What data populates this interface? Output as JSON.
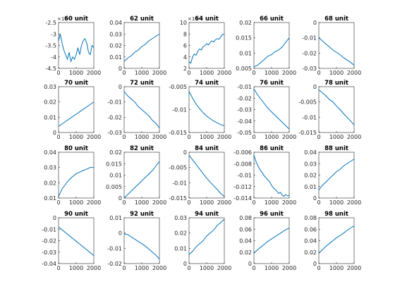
{
  "chart_data": [
    {
      "type": "line",
      "title": "60 unit",
      "y_exponent": "×10⁻³",
      "color": "#0072bd",
      "xlim": [
        0,
        2000
      ],
      "xticks": [
        0,
        1000,
        2000
      ],
      "ylim": [
        -4.5,
        -2.5
      ],
      "yticks": [
        -4.5,
        -4,
        -3.5,
        -3,
        -2.5
      ],
      "x": [
        0,
        100,
        200,
        300,
        400,
        500,
        600,
        700,
        800,
        900,
        1000,
        1100,
        1200,
        1300,
        1400,
        1500,
        1600,
        1700,
        1800,
        1900,
        2000
      ],
      "values": [
        -3.3,
        -3.0,
        -3.4,
        -3.7,
        -3.9,
        -4.1,
        -3.8,
        -4.2,
        -4.0,
        -4.1,
        -3.9,
        -3.6,
        -3.9,
        -3.5,
        -3.3,
        -3.2,
        -3.4,
        -3.8,
        -3.9,
        -3.5,
        -3.6
      ]
    },
    {
      "type": "line",
      "title": "62 unit",
      "color": "#0072bd",
      "xlim": [
        0,
        2000
      ],
      "xticks": [
        0,
        1000,
        2000
      ],
      "ylim": [
        0,
        0.04
      ],
      "yticks": [
        0,
        0.01,
        0.02,
        0.03,
        0.04
      ],
      "x": [
        0,
        200,
        400,
        600,
        800,
        1000,
        1200,
        1400,
        1600,
        1800,
        2000
      ],
      "values": [
        0.006,
        0.009,
        0.011,
        0.014,
        0.016,
        0.019,
        0.021,
        0.024,
        0.026,
        0.028,
        0.03
      ]
    },
    {
      "type": "line",
      "title": "64 unit",
      "y_exponent": "×10⁻³",
      "color": "#0072bd",
      "xlim": [
        0,
        2000
      ],
      "xticks": [
        0,
        1000,
        2000
      ],
      "ylim": [
        2,
        10
      ],
      "yticks": [
        2,
        4,
        6,
        8,
        10
      ],
      "x": [
        0,
        100,
        200,
        300,
        400,
        500,
        600,
        700,
        800,
        900,
        1000,
        1100,
        1200,
        1300,
        1400,
        1500,
        1600,
        1700,
        1800,
        1900,
        2000
      ],
      "values": [
        3.2,
        2.9,
        4.0,
        4.5,
        4.3,
        5.0,
        5.4,
        5.2,
        5.8,
        6.0,
        6.3,
        6.1,
        6.5,
        6.8,
        6.6,
        7.0,
        7.2,
        7.1,
        7.5,
        7.9,
        8.0
      ]
    },
    {
      "type": "line",
      "title": "66 unit",
      "color": "#0072bd",
      "xlim": [
        0,
        2000
      ],
      "xticks": [
        0,
        1000,
        2000
      ],
      "ylim": [
        0.005,
        0.02
      ],
      "yticks": [
        0.005,
        0.01,
        0.015,
        0.02
      ],
      "x": [
        0,
        200,
        400,
        600,
        800,
        1000,
        1200,
        1400,
        1600,
        1800,
        2000
      ],
      "values": [
        0.0055,
        0.006,
        0.007,
        0.008,
        0.009,
        0.0095,
        0.0105,
        0.011,
        0.012,
        0.0135,
        0.015
      ]
    },
    {
      "type": "line",
      "title": "68 unit",
      "color": "#0072bd",
      "xlim": [
        0,
        2000
      ],
      "xticks": [
        0,
        1000,
        2000
      ],
      "ylim": [
        -0.03,
        0
      ],
      "yticks": [
        -0.03,
        -0.02,
        -0.01,
        0
      ],
      "x": [
        0,
        200,
        400,
        600,
        800,
        1000,
        1200,
        1400,
        1600,
        1800,
        2000
      ],
      "values": [
        -0.01,
        -0.012,
        -0.014,
        -0.016,
        -0.018,
        -0.0195,
        -0.021,
        -0.023,
        -0.0245,
        -0.026,
        -0.028
      ]
    },
    {
      "type": "line",
      "title": "70 unit",
      "color": "#0072bd",
      "xlim": [
        0,
        2000
      ],
      "xticks": [
        0,
        1000,
        2000
      ],
      "ylim": [
        0,
        0.03
      ],
      "yticks": [
        0,
        0.01,
        0.02,
        0.03
      ],
      "x": [
        0,
        200,
        400,
        600,
        800,
        1000,
        1200,
        1400,
        1600,
        1800,
        2000
      ],
      "values": [
        0.004,
        0.0056,
        0.0072,
        0.0088,
        0.0104,
        0.012,
        0.0136,
        0.0152,
        0.0168,
        0.0184,
        0.02
      ]
    },
    {
      "type": "line",
      "title": "72 unit",
      "color": "#0072bd",
      "xlim": [
        0,
        2000
      ],
      "xticks": [
        0,
        1000,
        2000
      ],
      "ylim": [
        -0.03,
        0
      ],
      "yticks": [
        -0.03,
        -0.02,
        -0.01,
        0
      ],
      "x": [
        0,
        200,
        400,
        600,
        800,
        1000,
        1200,
        1400,
        1600,
        1800,
        2000
      ],
      "values": [
        -0.003,
        -0.006,
        -0.008,
        -0.01,
        -0.013,
        -0.015,
        -0.017,
        -0.019,
        -0.022,
        -0.024,
        -0.027
      ]
    },
    {
      "type": "line",
      "title": "74 unit",
      "color": "#0072bd",
      "xlim": [
        0,
        2000
      ],
      "xticks": [
        0,
        1000,
        2000
      ],
      "ylim": [
        -0.015,
        -0.005
      ],
      "yticks": [
        -0.015,
        -0.01,
        -0.005
      ],
      "x": [
        0,
        200,
        400,
        600,
        800,
        1000,
        1200,
        1400,
        1600,
        1800,
        2000
      ],
      "values": [
        -0.006,
        -0.0075,
        -0.0088,
        -0.0098,
        -0.0107,
        -0.0114,
        -0.012,
        -0.0125,
        -0.0129,
        -0.0133,
        -0.0135
      ]
    },
    {
      "type": "line",
      "title": "76 unit",
      "color": "#0072bd",
      "xlim": [
        0,
        2000
      ],
      "xticks": [
        0,
        1000,
        2000
      ],
      "ylim": [
        -0.05,
        -0.01
      ],
      "yticks": [
        -0.05,
        -0.04,
        -0.03,
        -0.02,
        -0.01
      ],
      "x": [
        0,
        200,
        400,
        600,
        800,
        1000,
        1200,
        1400,
        1600,
        1800,
        2000
      ],
      "values": [
        -0.012,
        -0.017,
        -0.021,
        -0.025,
        -0.029,
        -0.032,
        -0.035,
        -0.038,
        -0.041,
        -0.044,
        -0.047
      ]
    },
    {
      "type": "line",
      "title": "78 unit",
      "color": "#0072bd",
      "xlim": [
        0,
        2000
      ],
      "xticks": [
        0,
        1000,
        2000
      ],
      "ylim": [
        -0.015,
        0
      ],
      "yticks": [
        -0.015,
        -0.01,
        -0.005,
        0
      ],
      "x": [
        0,
        200,
        400,
        600,
        800,
        1000,
        1200,
        1400,
        1600,
        1800,
        2000
      ],
      "values": [
        -0.001,
        -0.002,
        -0.003,
        -0.0042,
        -0.005,
        -0.0063,
        -0.0075,
        -0.0088,
        -0.01,
        -0.0112,
        -0.0125
      ]
    },
    {
      "type": "line",
      "title": "80 unit",
      "color": "#0072bd",
      "xlim": [
        0,
        2000
      ],
      "xticks": [
        0,
        1000,
        2000
      ],
      "ylim": [
        0.01,
        0.04
      ],
      "yticks": [
        0.01,
        0.02,
        0.03,
        0.04
      ],
      "x": [
        0,
        200,
        400,
        600,
        800,
        1000,
        1200,
        1400,
        1600,
        1800,
        2000
      ],
      "values": [
        0.011,
        0.016,
        0.019,
        0.022,
        0.024,
        0.026,
        0.027,
        0.028,
        0.029,
        0.03,
        0.03
      ]
    },
    {
      "type": "line",
      "title": "82 unit",
      "color": "#0072bd",
      "xlim": [
        0,
        2000
      ],
      "xticks": [
        0,
        1000,
        2000
      ],
      "ylim": [
        0,
        0.02
      ],
      "yticks": [
        0,
        0.005,
        0.01,
        0.015,
        0.02
      ],
      "x": [
        0,
        200,
        400,
        600,
        800,
        1000,
        1200,
        1400,
        1600,
        1800,
        2000
      ],
      "values": [
        0.0,
        0.0015,
        0.003,
        0.0045,
        0.006,
        0.0075,
        0.009,
        0.0105,
        0.012,
        0.014,
        0.016
      ]
    },
    {
      "type": "line",
      "title": "84 unit",
      "color": "#0072bd",
      "xlim": [
        0,
        2000
      ],
      "xticks": [
        0,
        1000,
        2000
      ],
      "ylim": [
        -0.015,
        0
      ],
      "yticks": [
        -0.015,
        -0.01,
        -0.005,
        0
      ],
      "x": [
        0,
        200,
        400,
        600,
        800,
        1000,
        1200,
        1400,
        1600,
        1800,
        2000
      ],
      "values": [
        -0.001,
        -0.0025,
        -0.004,
        -0.0055,
        -0.007,
        -0.0085,
        -0.0098,
        -0.011,
        -0.0122,
        -0.0135,
        -0.0145
      ]
    },
    {
      "type": "line",
      "title": "86 unit",
      "color": "#0072bd",
      "xlim": [
        0,
        2000
      ],
      "xticks": [
        0,
        1000,
        2000
      ],
      "ylim": [
        -0.014,
        -0.006
      ],
      "yticks": [
        -0.014,
        -0.012,
        -0.01,
        -0.008,
        -0.006
      ],
      "x": [
        0,
        100,
        200,
        300,
        400,
        500,
        600,
        700,
        800,
        900,
        1000,
        1100,
        1200,
        1300,
        1400,
        1500,
        1600,
        1700,
        1800,
        1900,
        2000
      ],
      "values": [
        -0.0065,
        -0.0075,
        -0.0082,
        -0.0088,
        -0.0093,
        -0.0097,
        -0.0102,
        -0.0105,
        -0.0109,
        -0.0112,
        -0.0118,
        -0.0122,
        -0.0125,
        -0.0128,
        -0.0132,
        -0.013,
        -0.0135,
        -0.0137,
        -0.0134,
        -0.0136,
        -0.0135
      ]
    },
    {
      "type": "line",
      "title": "88 unit",
      "color": "#0072bd",
      "xlim": [
        0,
        2000
      ],
      "xticks": [
        0,
        1000,
        2000
      ],
      "ylim": [
        0,
        0.04
      ],
      "yticks": [
        0,
        0.01,
        0.02,
        0.03,
        0.04
      ],
      "x": [
        0,
        200,
        400,
        600,
        800,
        1000,
        1200,
        1400,
        1600,
        1800,
        2000
      ],
      "values": [
        0.007,
        0.011,
        0.014,
        0.017,
        0.02,
        0.023,
        0.025,
        0.028,
        0.03,
        0.032,
        0.034
      ]
    },
    {
      "type": "line",
      "title": "90 unit",
      "color": "#0072bd",
      "xlim": [
        0,
        2000
      ],
      "xticks": [
        0,
        1000,
        2000
      ],
      "ylim": [
        -0.04,
        0
      ],
      "yticks": [
        -0.04,
        -0.03,
        -0.02,
        -0.01,
        0
      ],
      "x": [
        0,
        200,
        400,
        600,
        800,
        1000,
        1200,
        1400,
        1600,
        1800,
        2000
      ],
      "values": [
        -0.008,
        -0.0105,
        -0.013,
        -0.0155,
        -0.018,
        -0.0205,
        -0.023,
        -0.0255,
        -0.028,
        -0.0305,
        -0.033
      ]
    },
    {
      "type": "line",
      "title": "92 unit",
      "color": "#0072bd",
      "xlim": [
        0,
        2000
      ],
      "xticks": [
        0,
        1000,
        2000
      ],
      "ylim": [
        -0.02,
        0.01
      ],
      "yticks": [
        -0.02,
        -0.01,
        0,
        0.01
      ],
      "x": [
        0,
        200,
        400,
        600,
        800,
        1000,
        1200,
        1400,
        1600,
        1800,
        2000
      ],
      "values": [
        -0.0005,
        -0.001,
        -0.0025,
        -0.004,
        -0.0055,
        -0.007,
        -0.0085,
        -0.0105,
        -0.0125,
        -0.0145,
        -0.017
      ]
    },
    {
      "type": "line",
      "title": "94 unit",
      "color": "#0072bd",
      "xlim": [
        0,
        2000
      ],
      "xticks": [
        0,
        1000,
        2000
      ],
      "ylim": [
        0,
        0.03
      ],
      "yticks": [
        0,
        0.01,
        0.02,
        0.03
      ],
      "x": [
        0,
        200,
        400,
        600,
        800,
        1000,
        1200,
        1400,
        1600,
        1800,
        2000
      ],
      "values": [
        0.006,
        0.008,
        0.011,
        0.013,
        0.015,
        0.018,
        0.02,
        0.022,
        0.025,
        0.027,
        0.029
      ]
    },
    {
      "type": "line",
      "title": "96 unit",
      "color": "#0072bd",
      "xlim": [
        0,
        2000
      ],
      "xticks": [
        0,
        1000,
        2000
      ],
      "ylim": [
        0,
        0.08
      ],
      "yticks": [
        0,
        0.02,
        0.04,
        0.06,
        0.08
      ],
      "x": [
        0,
        200,
        400,
        600,
        800,
        1000,
        1200,
        1400,
        1600,
        1800,
        2000
      ],
      "values": [
        0.018,
        0.024,
        0.029,
        0.034,
        0.039,
        0.043,
        0.047,
        0.051,
        0.055,
        0.059,
        0.062
      ]
    },
    {
      "type": "line",
      "title": "98 unit",
      "color": "#0072bd",
      "xlim": [
        0,
        2000
      ],
      "xticks": [
        0,
        1000,
        2000
      ],
      "ylim": [
        0,
        0.08
      ],
      "yticks": [
        0,
        0.02,
        0.04,
        0.06,
        0.08
      ],
      "x": [
        0,
        200,
        400,
        600,
        800,
        1000,
        1200,
        1400,
        1600,
        1800,
        2000
      ],
      "values": [
        0.018,
        0.024,
        0.03,
        0.035,
        0.04,
        0.045,
        0.049,
        0.053,
        0.058,
        0.062,
        0.066
      ]
    }
  ]
}
